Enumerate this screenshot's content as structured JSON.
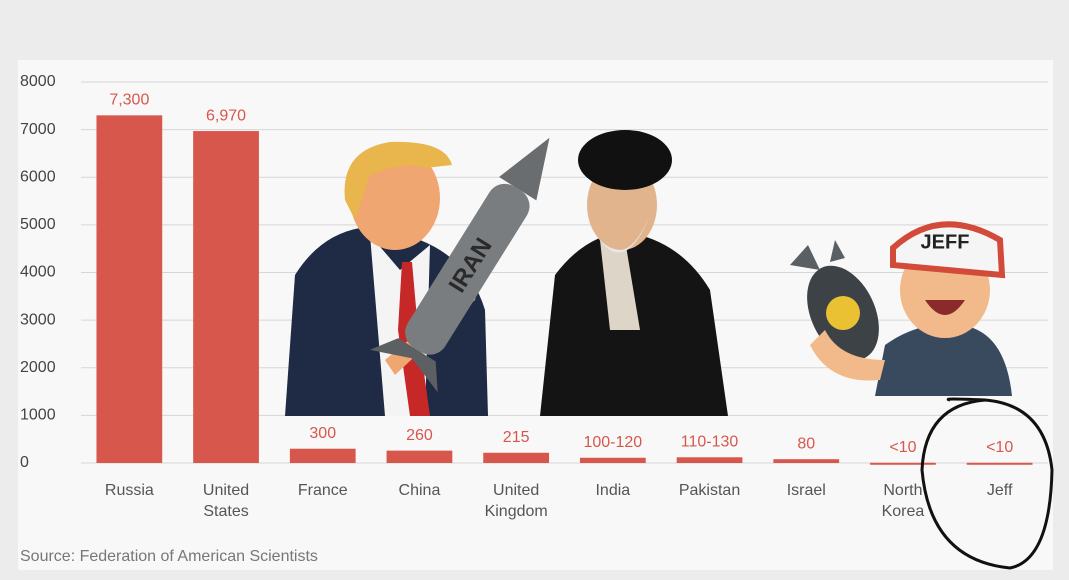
{
  "chart_data": {
    "type": "bar",
    "categories": [
      "Russia",
      "United States",
      "France",
      "China",
      "United Kingdom",
      "India",
      "Pakistan",
      "Israel",
      "North Korea",
      "Jeff"
    ],
    "values": [
      7300,
      6970,
      300,
      260,
      215,
      110,
      120,
      80,
      5,
      5
    ],
    "value_labels": [
      "7,300",
      "6,970",
      "300",
      "260",
      "215",
      "100-120",
      "110-130",
      "80",
      "<10",
      "<10"
    ],
    "color": "#d8574c",
    "ylim": [
      0,
      8000
    ],
    "yticks": [
      0,
      1000,
      2000,
      3000,
      4000,
      5000,
      6000,
      7000,
      8000
    ],
    "grid": true,
    "source": "Source: Federation of American Scientists",
    "annotations": [
      "IRAN",
      "JEFF"
    ]
  }
}
